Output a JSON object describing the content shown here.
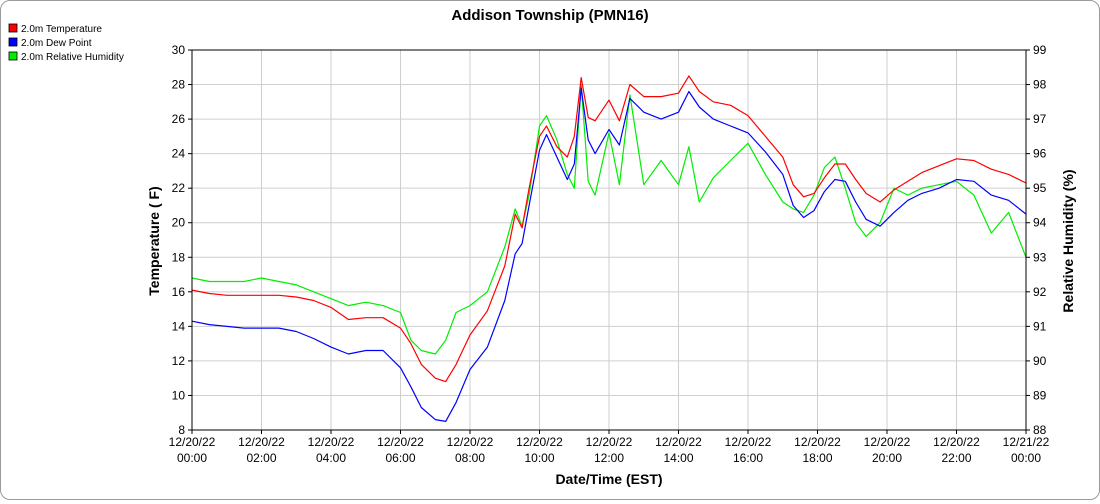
{
  "chart_data": {
    "type": "line",
    "title": "Addison Township (PMN16)",
    "xlabel": "Date/Time (EST)",
    "ylabel": "Temperature ( F)",
    "y2label": "Relative Humidity (%)",
    "ylim": [
      8,
      30
    ],
    "y2lim": [
      88,
      99
    ],
    "yticks": [
      "8",
      "10",
      "12",
      "14",
      "16",
      "18",
      "20",
      "22",
      "24",
      "26",
      "28",
      "30"
    ],
    "y2ticks": [
      "88",
      "89",
      "90",
      "91",
      "92",
      "93",
      "94",
      "95",
      "96",
      "97",
      "98",
      "99"
    ],
    "xlim_hours": [
      0,
      24
    ],
    "xticks": [
      {
        "date": "12/20/22",
        "time": "00:00"
      },
      {
        "date": "12/20/22",
        "time": "02:00"
      },
      {
        "date": "12/20/22",
        "time": "04:00"
      },
      {
        "date": "12/20/22",
        "time": "06:00"
      },
      {
        "date": "12/20/22",
        "time": "08:00"
      },
      {
        "date": "12/20/22",
        "time": "10:00"
      },
      {
        "date": "12/20/22",
        "time": "12:00"
      },
      {
        "date": "12/20/22",
        "time": "14:00"
      },
      {
        "date": "12/20/22",
        "time": "16:00"
      },
      {
        "date": "12/20/22",
        "time": "18:00"
      },
      {
        "date": "12/20/22",
        "time": "20:00"
      },
      {
        "date": "12/20/22",
        "time": "22:00"
      },
      {
        "date": "12/21/22",
        "time": "00:00"
      }
    ],
    "grid": true,
    "legend_position": "top-left",
    "series": [
      {
        "name": "2.0m Temperature",
        "color": "#ff0000",
        "axis": "left",
        "x": [
          0,
          0.5,
          1,
          1.5,
          2,
          2.5,
          3,
          3.5,
          4,
          4.5,
          5,
          5.5,
          6,
          6.3,
          6.6,
          7,
          7.3,
          7.6,
          8,
          8.5,
          9,
          9.3,
          9.5,
          9.7,
          10,
          10.2,
          10.5,
          10.8,
          11,
          11.2,
          11.4,
          11.6,
          12,
          12.3,
          12.6,
          13,
          13.5,
          14,
          14.3,
          14.6,
          15,
          15.5,
          16,
          16.5,
          17,
          17.3,
          17.6,
          17.9,
          18.2,
          18.5,
          18.8,
          19.1,
          19.4,
          19.8,
          20.2,
          20.6,
          21,
          21.5,
          22,
          22.5,
          23,
          23.5,
          24
        ],
        "y": [
          16.1,
          15.9,
          15.8,
          15.8,
          15.8,
          15.8,
          15.7,
          15.5,
          15.1,
          14.4,
          14.5,
          14.5,
          13.9,
          13.0,
          11.8,
          11.0,
          10.8,
          11.8,
          13.5,
          14.9,
          17.5,
          20.5,
          19.7,
          22.0,
          25.0,
          25.6,
          24.4,
          23.8,
          25.0,
          28.4,
          26.1,
          25.9,
          27.1,
          25.9,
          28.0,
          27.3,
          27.3,
          27.5,
          28.5,
          27.6,
          27.0,
          26.8,
          26.2,
          25.0,
          23.8,
          22.2,
          21.5,
          21.7,
          22.6,
          23.4,
          23.4,
          22.5,
          21.7,
          21.2,
          21.9,
          22.4,
          22.9,
          23.3,
          23.7,
          23.6,
          23.1,
          22.8,
          22.3
        ]
      },
      {
        "name": "2.0m Dew Point",
        "color": "#0000ff",
        "axis": "left",
        "x": [
          0,
          0.5,
          1,
          1.5,
          2,
          2.5,
          3,
          3.5,
          4,
          4.5,
          5,
          5.5,
          6,
          6.3,
          6.6,
          7,
          7.3,
          7.6,
          8,
          8.5,
          9,
          9.3,
          9.5,
          9.7,
          10,
          10.2,
          10.5,
          10.8,
          11,
          11.2,
          11.4,
          11.6,
          12,
          12.3,
          12.6,
          13,
          13.5,
          14,
          14.3,
          14.6,
          15,
          15.5,
          16,
          16.5,
          17,
          17.3,
          17.6,
          17.9,
          18.2,
          18.5,
          18.8,
          19.1,
          19.4,
          19.8,
          20.2,
          20.6,
          21,
          21.5,
          22,
          22.5,
          23,
          23.5,
          24
        ],
        "y": [
          14.3,
          14.1,
          14.0,
          13.9,
          13.9,
          13.9,
          13.7,
          13.3,
          12.8,
          12.4,
          12.6,
          12.6,
          11.6,
          10.5,
          9.3,
          8.6,
          8.5,
          9.6,
          11.5,
          12.8,
          15.5,
          18.2,
          18.8,
          21.0,
          24.2,
          25.1,
          23.8,
          22.5,
          23.4,
          27.8,
          24.8,
          24.0,
          25.4,
          24.5,
          27.2,
          26.4,
          26.0,
          26.4,
          27.6,
          26.7,
          26.0,
          25.6,
          25.2,
          24.1,
          22.8,
          21.0,
          20.3,
          20.7,
          21.8,
          22.5,
          22.4,
          21.2,
          20.2,
          19.8,
          20.6,
          21.3,
          21.7,
          22.0,
          22.5,
          22.4,
          21.6,
          21.3,
          20.5
        ]
      },
      {
        "name": "2.0m Relative Humidity",
        "color": "#00ee00",
        "axis": "right",
        "x": [
          0,
          0.5,
          1,
          1.5,
          2,
          2.5,
          3,
          3.5,
          4,
          4.5,
          5,
          5.5,
          6,
          6.3,
          6.6,
          7,
          7.3,
          7.6,
          8,
          8.5,
          9,
          9.3,
          9.5,
          9.7,
          10,
          10.2,
          10.5,
          10.8,
          11,
          11.2,
          11.4,
          11.6,
          12,
          12.3,
          12.6,
          13,
          13.5,
          14,
          14.3,
          14.6,
          15,
          15.5,
          16,
          16.5,
          17,
          17.3,
          17.6,
          17.9,
          18.2,
          18.5,
          18.8,
          19.1,
          19.4,
          19.8,
          20.2,
          20.6,
          21,
          21.5,
          22,
          22.5,
          23,
          23.5,
          24
        ],
        "y": [
          92.4,
          92.3,
          92.3,
          92.3,
          92.4,
          92.3,
          92.2,
          92.0,
          91.8,
          91.6,
          91.7,
          91.6,
          91.4,
          90.6,
          90.3,
          90.2,
          90.6,
          91.4,
          91.6,
          92.0,
          93.3,
          94.4,
          93.9,
          94.8,
          96.8,
          97.1,
          96.4,
          95.4,
          95.0,
          98.0,
          95.2,
          94.8,
          96.6,
          95.1,
          97.7,
          95.1,
          95.8,
          95.1,
          96.2,
          94.6,
          95.3,
          95.8,
          96.3,
          95.4,
          94.6,
          94.4,
          94.3,
          94.8,
          95.6,
          95.9,
          95.0,
          94.0,
          93.6,
          94.0,
          95.0,
          94.8,
          95.0,
          95.1,
          95.2,
          94.8,
          93.7,
          94.3,
          93.0
        ]
      }
    ]
  }
}
